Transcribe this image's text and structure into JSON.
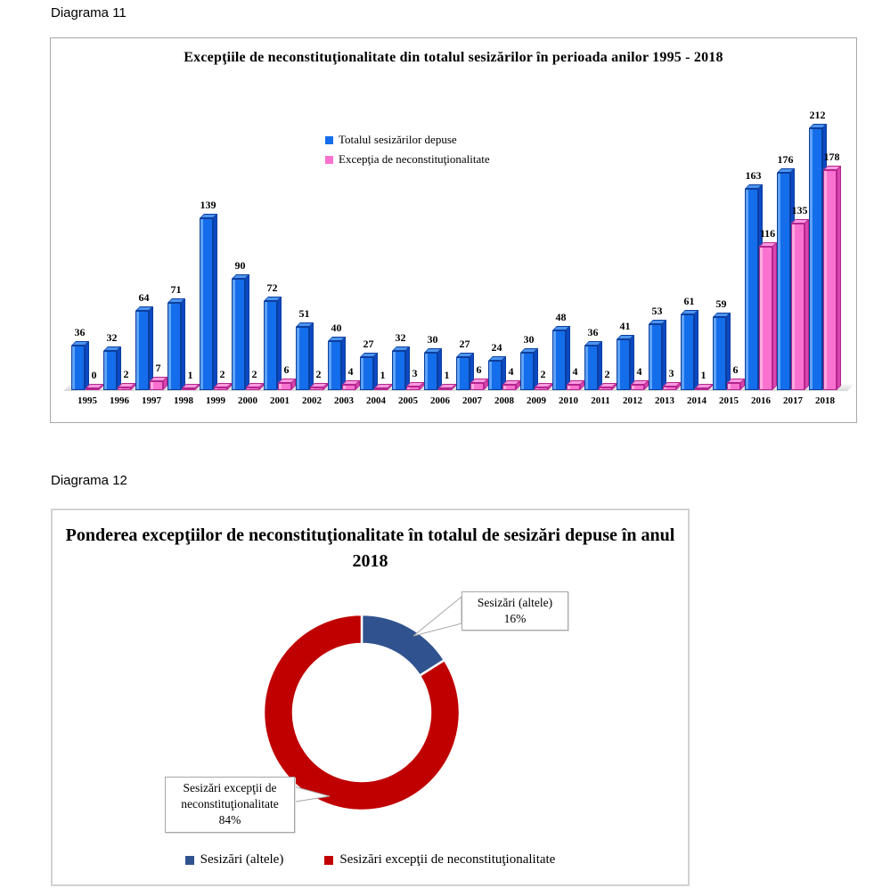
{
  "diagrama11_label": "Diagrama 11",
  "diagrama12_label": "Diagrama 12",
  "chart_data": [
    {
      "type": "bar",
      "title": "Excepţiile de neconstituţionalitate din totalul sesizărilor în perioada anilor 1995 - 2018",
      "categories": [
        "1995",
        "1996",
        "1997",
        "1998",
        "1999",
        "2000",
        "2001",
        "2002",
        "2003",
        "2004",
        "2005",
        "2006",
        "2007",
        "2008",
        "2009",
        "2010",
        "2011",
        "2012",
        "2013",
        "2014",
        "2015",
        "2016",
        "2017",
        "2018"
      ],
      "series": [
        {
          "name": "Totalul sesizărilor depuse",
          "color": "#146dea",
          "values": [
            36,
            32,
            64,
            71,
            139,
            90,
            72,
            51,
            40,
            27,
            32,
            30,
            27,
            24,
            30,
            48,
            36,
            41,
            53,
            61,
            59,
            163,
            176,
            212
          ]
        },
        {
          "name": "Excepţia de neconstituţionalitate",
          "color": "#fa72d0",
          "values": [
            0,
            2,
            7,
            1,
            2,
            2,
            6,
            2,
            4,
            1,
            3,
            1,
            6,
            4,
            2,
            4,
            2,
            4,
            3,
            1,
            6,
            116,
            135,
            178
          ]
        }
      ],
      "ylim": [
        0,
        220
      ],
      "grid": false,
      "legend_position": "inside-top-center",
      "bar_value_labels": true,
      "style": "3d-clustered"
    },
    {
      "type": "pie",
      "donut": true,
      "title": "Ponderea excepţiilor de neconstituţionalitate în totalul de sesizări depuse în anul 2018",
      "slices": [
        {
          "label": "Sesizări (altele)",
          "percent": 16,
          "percent_label": "16%",
          "color": "#30538f"
        },
        {
          "label": "Sesizări excepţii de neconstituţionalitate",
          "percent": 84,
          "percent_label": "84%",
          "color": "#c00000"
        }
      ],
      "legend_position": "bottom"
    }
  ]
}
